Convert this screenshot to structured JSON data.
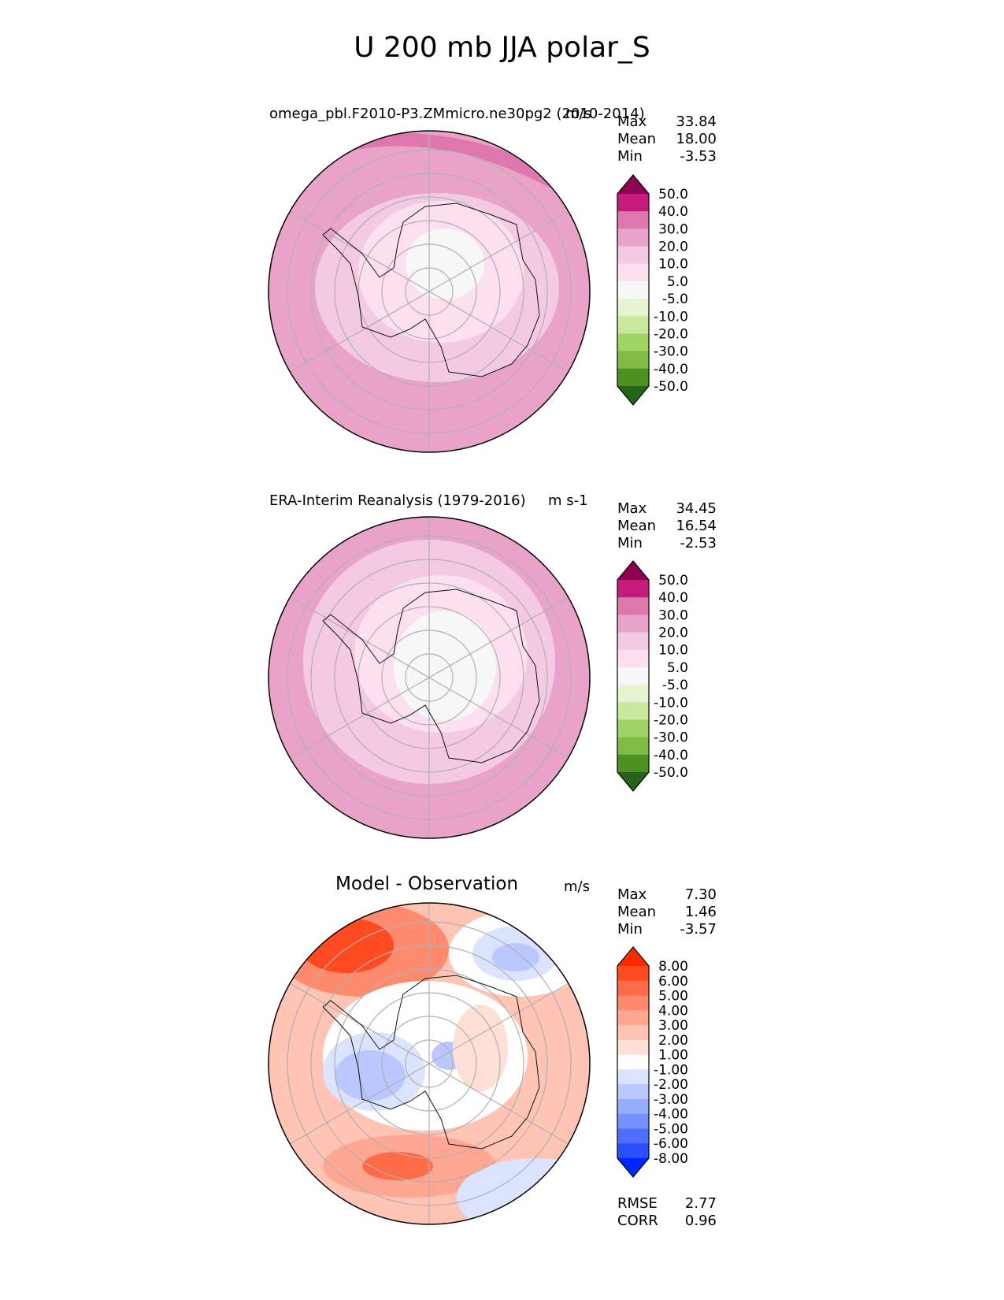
{
  "title": "U 200 mb JJA polar_S",
  "chart_data": [
    {
      "type": "heatmap",
      "projection": "south-polar-stereographic",
      "title": "omega_pbl.F2010-P3.ZMmicro.ne30pg2 (2010-2014)",
      "units": "m/s",
      "stats": [
        {
          "label": "Max",
          "value": "33.84"
        },
        {
          "label": "Mean",
          "value": "18.00"
        },
        {
          "label": "Min",
          "value": "-3.53"
        }
      ],
      "colorbar_levels": [
        "50.0",
        "40.0",
        "30.0",
        "20.0",
        "10.0",
        "5.0",
        "-5.0",
        "-10.0",
        "-20.0",
        "-30.0",
        "-40.0",
        "-50.0"
      ],
      "colorbar_colors": [
        "#8e0152",
        "#c51b7d",
        "#de77ae",
        "#e9a3c9",
        "#f4c9e2",
        "#fde0ef",
        "#f7f7f7",
        "#e6f5d0",
        "#c9e89e",
        "#a1d467",
        "#7fbc41",
        "#4d9221",
        "#276419"
      ],
      "field_bands": [
        {
          "level_index": 6,
          "description": "5 to -5 near pole"
        },
        {
          "level_index": 5,
          "description": "5 to 10"
        },
        {
          "level_index": 4,
          "description": "10 to 20"
        },
        {
          "level_index": 3,
          "description": "20 to 30"
        },
        {
          "level_index": 2,
          "description": "30 to 40 outer edge"
        }
      ]
    },
    {
      "type": "heatmap",
      "projection": "south-polar-stereographic",
      "title": "ERA-Interim Reanalysis (1979-2016)",
      "units": "m s-1",
      "stats": [
        {
          "label": "Max",
          "value": "34.45"
        },
        {
          "label": "Mean",
          "value": "16.54"
        },
        {
          "label": "Min",
          "value": "-2.53"
        }
      ],
      "colorbar_levels": [
        "50.0",
        "40.0",
        "30.0",
        "20.0",
        "10.0",
        "5.0",
        "-5.0",
        "-10.0",
        "-20.0",
        "-30.0",
        "-40.0",
        "-50.0"
      ],
      "colorbar_colors": [
        "#8e0152",
        "#c51b7d",
        "#de77ae",
        "#e9a3c9",
        "#f4c9e2",
        "#fde0ef",
        "#f7f7f7",
        "#e6f5d0",
        "#c9e89e",
        "#a1d467",
        "#7fbc41",
        "#4d9221",
        "#276419"
      ]
    },
    {
      "type": "heatmap",
      "projection": "south-polar-stereographic",
      "title": "Model - Observation",
      "units": "m/s",
      "stats": [
        {
          "label": "Max",
          "value": "7.30"
        },
        {
          "label": "Mean",
          "value": "1.46"
        },
        {
          "label": "Min",
          "value": "-3.57"
        }
      ],
      "colorbar_levels": [
        "8.00",
        "6.00",
        "5.00",
        "4.00",
        "3.00",
        "2.00",
        "1.00",
        "-1.00",
        "-2.00",
        "-3.00",
        "-4.00",
        "-5.00",
        "-6.00",
        "-8.00"
      ],
      "colorbar_colors": [
        "#ff2a00",
        "#ff4b1f",
        "#ff6a47",
        "#ff8a6e",
        "#ffa792",
        "#ffc4b4",
        "#ffe0d6",
        "#ffffff",
        "#dce3ff",
        "#bac8ff",
        "#97adff",
        "#7591ff",
        "#4f70ff",
        "#2a4fff",
        "#0026ff"
      ],
      "metrics": [
        {
          "label": "RMSE",
          "value": "2.77"
        },
        {
          "label": "CORR",
          "value": "0.96"
        }
      ]
    }
  ]
}
